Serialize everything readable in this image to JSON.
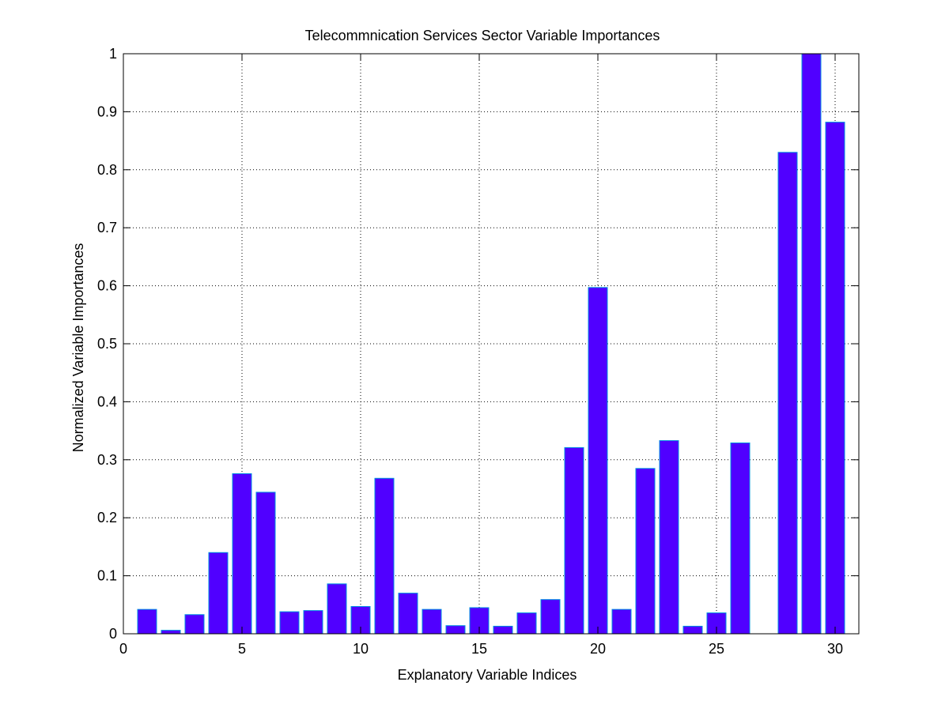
{
  "chart_data": {
    "type": "bar",
    "title": "Telecommnication Services Sector Variable Importances",
    "xlabel": "Explanatory Variable Indices",
    "ylabel": "Normalized Variable Importances",
    "xlim": [
      0,
      31
    ],
    "ylim": [
      0,
      1
    ],
    "xticks": [
      "0",
      "5",
      "10",
      "15",
      "20",
      "25",
      "30"
    ],
    "yticks": [
      "0",
      "0.1",
      "0.2",
      "0.3",
      "0.4",
      "0.5",
      "0.6",
      "0.7",
      "0.8",
      "0.9",
      "1"
    ],
    "grid": true,
    "bar_color": "#5000ff",
    "bar_edge_color": "#0090e0",
    "x": [
      1,
      2,
      3,
      4,
      5,
      6,
      7,
      8,
      9,
      10,
      11,
      12,
      13,
      14,
      15,
      16,
      17,
      18,
      19,
      20,
      21,
      22,
      23,
      24,
      25,
      26,
      27,
      28,
      29,
      30
    ],
    "values": [
      0.042,
      0.006,
      0.033,
      0.14,
      0.276,
      0.244,
      0.038,
      0.04,
      0.086,
      0.047,
      0.268,
      0.07,
      0.042,
      0.014,
      0.045,
      0.013,
      0.036,
      0.059,
      0.321,
      0.597,
      0.042,
      0.285,
      0.333,
      0.013,
      0.036,
      0.329,
      0,
      0.83,
      1.0,
      0.882
    ]
  }
}
